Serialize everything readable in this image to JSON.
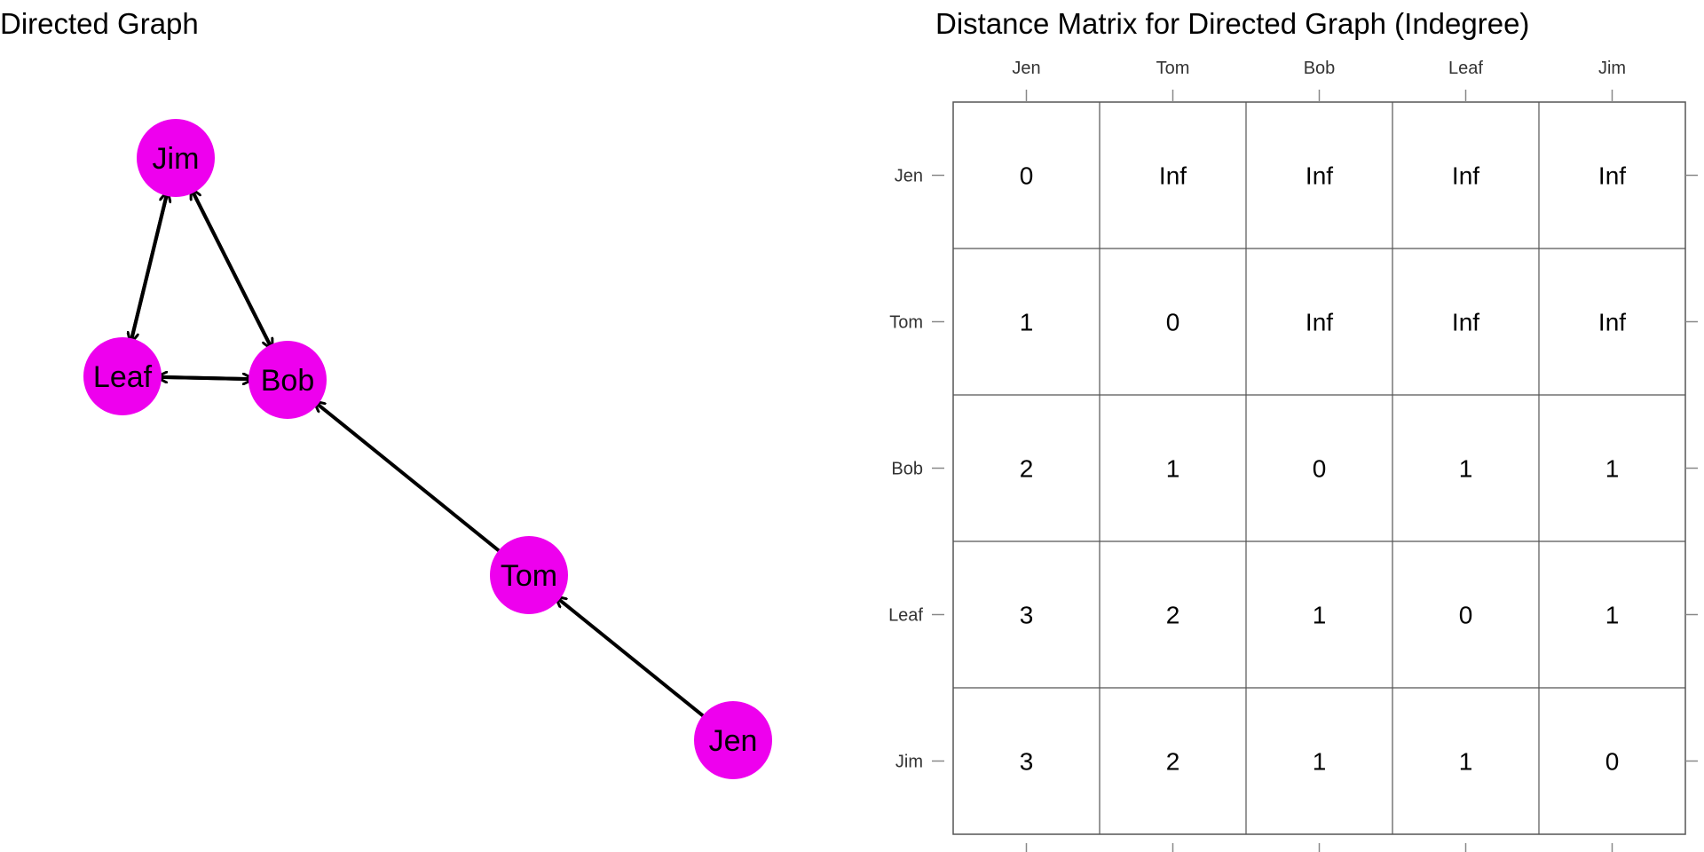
{
  "graph_panel": {
    "title": "Directed Graph",
    "node_color": "#ee00ee",
    "nodes": [
      {
        "id": "Jim",
        "label": "Jim"
      },
      {
        "id": "Leaf",
        "label": "Leaf"
      },
      {
        "id": "Bob",
        "label": "Bob"
      },
      {
        "id": "Tom",
        "label": "Tom"
      },
      {
        "id": "Jen",
        "label": "Jen"
      }
    ],
    "edges": [
      {
        "from": "Jen",
        "to": "Tom"
      },
      {
        "from": "Tom",
        "to": "Bob"
      },
      {
        "from": "Bob",
        "to": "Leaf"
      },
      {
        "from": "Leaf",
        "to": "Bob"
      },
      {
        "from": "Bob",
        "to": "Jim"
      },
      {
        "from": "Jim",
        "to": "Bob"
      },
      {
        "from": "Leaf",
        "to": "Jim"
      },
      {
        "from": "Jim",
        "to": "Leaf"
      }
    ]
  },
  "matrix_panel": {
    "title": "Distance Matrix for Directed Graph (Indegree)",
    "column_labels": [
      "Jen",
      "Tom",
      "Bob",
      "Leaf",
      "Jim"
    ],
    "row_labels": [
      "Jen",
      "Tom",
      "Bob",
      "Leaf",
      "Jim"
    ],
    "values": [
      [
        "0",
        "Inf",
        "Inf",
        "Inf",
        "Inf"
      ],
      [
        "1",
        "0",
        "Inf",
        "Inf",
        "Inf"
      ],
      [
        "2",
        "1",
        "0",
        "1",
        "1"
      ],
      [
        "3",
        "2",
        "1",
        "0",
        "1"
      ],
      [
        "3",
        "2",
        "1",
        "1",
        "0"
      ]
    ]
  }
}
